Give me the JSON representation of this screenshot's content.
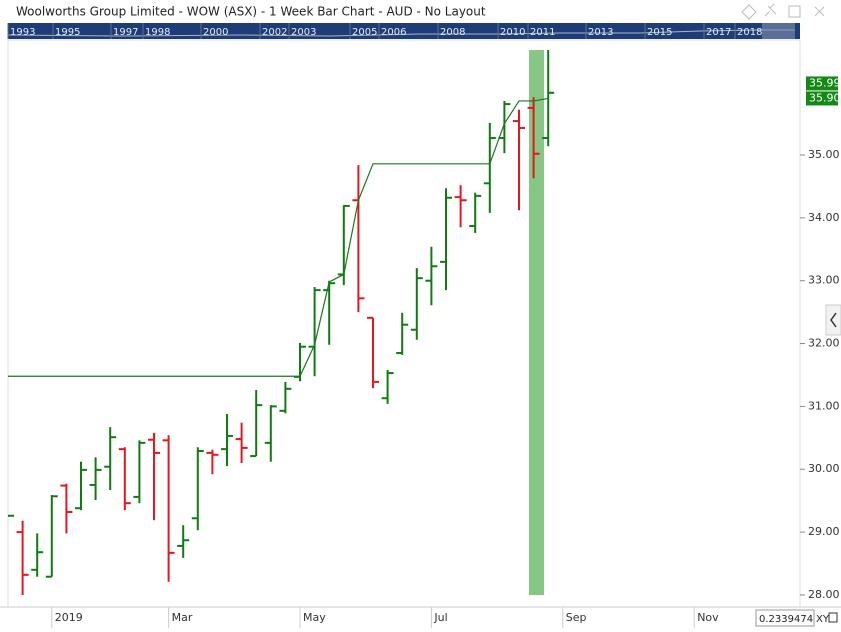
{
  "chart_data": {
    "type": "ohlc",
    "title": "Woolworths Group Limited - WOW (ASX) - 1 Week Bar Chart - AUD - No Layout",
    "categories": [
      null,
      null,
      null,
      "2019",
      null,
      null,
      null,
      null,
      null,
      null,
      null,
      "Mar",
      null,
      null,
      null,
      null,
      null,
      null,
      null,
      null,
      "May",
      null,
      null,
      null,
      null,
      null,
      null,
      null,
      null,
      "Jul",
      null,
      null,
      null,
      null,
      null,
      null,
      null,
      null,
      "Sep",
      null,
      null,
      null,
      null,
      null,
      null,
      null,
      null,
      "Nov",
      null,
      null,
      null,
      null,
      null,
      null,
      null
    ],
    "open": [
      null,
      29.0,
      28.4,
      28.29,
      29.74,
      29.38,
      29.75,
      30.04,
      30.32,
      29.56,
      30.47,
      30.46,
      28.78,
      29.22,
      30.26,
      30.32,
      30.48,
      30.21,
      30.42,
      30.93,
      31.47,
      31.95,
      32.85,
      33.1,
      34.28,
      32.41,
      31.13,
      31.85,
      32.22,
      33.0,
      33.3,
      34.33,
      33.87,
      34.55,
      35.27,
      35.54,
      35.75,
      35.27,
      null,
      null,
      null,
      null,
      null,
      null,
      null,
      null,
      null,
      null,
      null,
      null,
      null,
      null,
      null,
      null,
      null
    ],
    "high": [
      null,
      29.18,
      28.98,
      29.59,
      29.77,
      30.12,
      30.19,
      30.67,
      30.35,
      30.46,
      30.58,
      30.54,
      29.11,
      30.35,
      30.31,
      30.88,
      30.74,
      31.26,
      31.02,
      31.39,
      32.01,
      32.9,
      33.0,
      34.2,
      34.84,
      32.41,
      31.58,
      32.49,
      33.2,
      33.54,
      34.47,
      34.52,
      34.4,
      35.51,
      35.86,
      35.72,
      35.92,
      36.67,
      null,
      null,
      null,
      null,
      null,
      null,
      null,
      null,
      null,
      null,
      null,
      null,
      null,
      null,
      null,
      null,
      null
    ],
    "low": [
      null,
      28.0,
      28.29,
      28.29,
      28.98,
      29.35,
      29.51,
      29.67,
      29.35,
      29.46,
      29.19,
      28.21,
      28.59,
      29.03,
      29.92,
      30.05,
      30.1,
      30.21,
      30.12,
      30.89,
      31.4,
      31.48,
      31.98,
      32.93,
      32.5,
      31.29,
      31.04,
      31.82,
      32.06,
      32.61,
      32.85,
      33.85,
      33.76,
      34.08,
      35.03,
      34.12,
      34.63,
      35.14,
      null,
      null,
      null,
      null,
      null,
      null,
      null,
      null,
      null,
      null,
      null,
      null,
      null,
      null,
      null,
      null,
      null
    ],
    "close": [
      29.26,
      28.32,
      28.68,
      29.57,
      29.32,
      29.99,
      29.99,
      30.51,
      29.46,
      30.42,
      30.26,
      28.67,
      28.87,
      30.29,
      30.23,
      30.53,
      30.34,
      31.02,
      31.0,
      31.28,
      31.95,
      32.85,
      32.96,
      34.19,
      32.72,
      31.39,
      31.53,
      32.3,
      33.04,
      33.23,
      34.32,
      34.28,
      34.35,
      35.27,
      35.81,
      35.43,
      35.02,
      35.99,
      null,
      null,
      null,
      null,
      null,
      null,
      null,
      null,
      null,
      null,
      null,
      null,
      null,
      null,
      null,
      null,
      null
    ],
    "up_color": "#107c10",
    "down_color": "#e8141e",
    "overlay": {
      "color": "#1a7a1a",
      "values": [
        31.48,
        31.48,
        31.48,
        31.48,
        31.48,
        31.48,
        31.48,
        31.48,
        31.48,
        31.48,
        31.48,
        31.48,
        31.48,
        31.48,
        31.48,
        31.48,
        31.48,
        31.48,
        31.48,
        31.48,
        31.48,
        31.98,
        32.98,
        33.1,
        34.28,
        34.86,
        34.86,
        34.86,
        34.86,
        34.86,
        34.86,
        34.86,
        34.86,
        34.86,
        35.5,
        35.86,
        35.86,
        35.9,
        null,
        null,
        null,
        null,
        null,
        null,
        null,
        null,
        null,
        null,
        null,
        null,
        null,
        null,
        null,
        null,
        null
      ],
      "value_labels": [
        null,
        null,
        null,
        null,
        null,
        null,
        null,
        null,
        null,
        null,
        null,
        null,
        null,
        null,
        null,
        null,
        null,
        null,
        null,
        null,
        null,
        null,
        null,
        null,
        null,
        null,
        null,
        null,
        null,
        null,
        null,
        null,
        null,
        null,
        null,
        null,
        null,
        "35.90",
        null,
        null,
        null,
        null,
        null,
        null,
        null,
        null,
        null,
        null,
        null,
        null,
        null,
        null,
        null,
        null,
        null
      ]
    },
    "ylim": [
      27.84,
      36.83
    ],
    "yticks": [
      {
        "value": 28,
        "label": "28.00"
      },
      {
        "value": 29,
        "label": "29.00"
      },
      {
        "value": 30,
        "label": "30.00"
      },
      {
        "value": 31,
        "label": "31.00"
      },
      {
        "value": 32,
        "label": "32.00"
      },
      {
        "value": 33,
        "label": "33.00"
      },
      {
        "value": 34,
        "label": "34.00"
      },
      {
        "value": 35,
        "label": "35.00"
      }
    ],
    "navigator_years": [
      "1993",
      "1995",
      "1997",
      "1998",
      "2000",
      "2002",
      "2003",
      "2005",
      "2006",
      "2008",
      "2010",
      "2011",
      "2013",
      "2015",
      "2017",
      "2018"
    ],
    "readout": "0.2339474",
    "readout_mode": "XY"
  }
}
